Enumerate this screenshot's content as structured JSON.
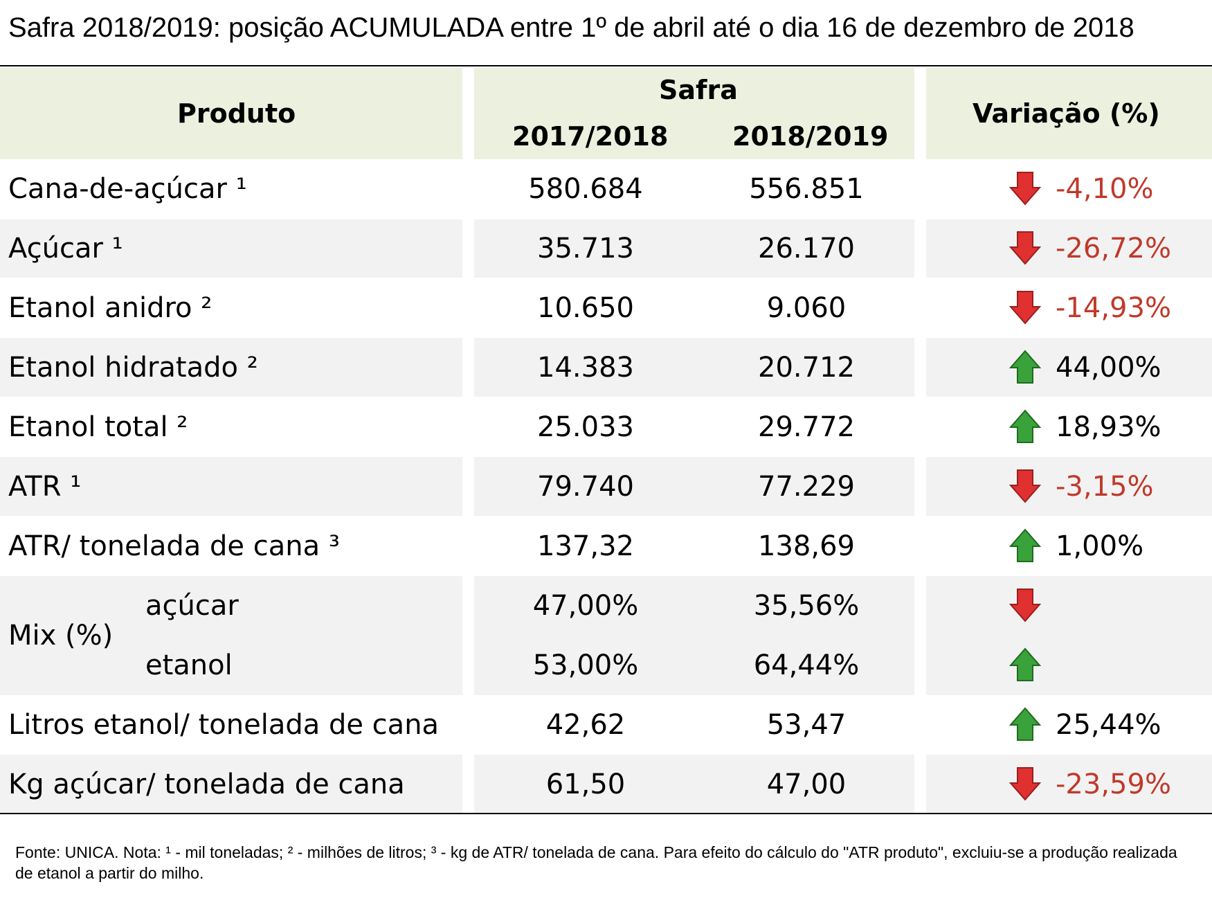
{
  "title": "Safra 2018/2019: posição ACUMULADA entre 1º de abril até o dia 16 de dezembro de 2018",
  "header": {
    "produto": "Produto",
    "safra": "Safra",
    "col1": "2017/2018",
    "col2": "2018/2019",
    "variacao": "Variação (%)"
  },
  "rows": [
    {
      "label": "Cana-de-açúcar ¹",
      "v1": "580.684",
      "v2": "556.851",
      "var": "-4,10%",
      "dir": "down"
    },
    {
      "label": "Açúcar ¹",
      "v1": "35.713",
      "v2": "26.170",
      "var": "-26,72%",
      "dir": "down"
    },
    {
      "label": "Etanol anidro ²",
      "v1": "10.650",
      "v2": "9.060",
      "var": "-14,93%",
      "dir": "down"
    },
    {
      "label": "Etanol hidratado ²",
      "v1": "14.383",
      "v2": "20.712",
      "var": "44,00%",
      "dir": "up"
    },
    {
      "label": "Etanol total ²",
      "v1": "25.033",
      "v2": "29.772",
      "var": "18,93%",
      "dir": "up"
    },
    {
      "label": "ATR ¹",
      "v1": "79.740",
      "v2": "77.229",
      "var": "-3,15%",
      "dir": "down"
    },
    {
      "label": "ATR/ tonelada de cana ³",
      "v1": "137,32",
      "v2": "138,69",
      "var": "1,00%",
      "dir": "up"
    }
  ],
  "mix": {
    "label": "Mix (%)",
    "acucar": {
      "label": "açúcar",
      "v1": "47,00%",
      "v2": "35,56%",
      "dir": "down"
    },
    "etanol": {
      "label": "etanol",
      "v1": "53,00%",
      "v2": "64,44%",
      "dir": "up"
    }
  },
  "rows_after": [
    {
      "label": "Litros etanol/ tonelada de cana",
      "v1": "42,62",
      "v2": "53,47",
      "var": "25,44%",
      "dir": "up"
    },
    {
      "label": "Kg açúcar/ tonelada de cana",
      "v1": "61,50",
      "v2": "47,00",
      "var": "-23,59%",
      "dir": "down"
    }
  ],
  "footnote": "Fonte: UNICA. Nota: ¹ - mil toneladas; ² - milhões de litros; ³ - kg de ATR/ tonelada de cana. Para efeito do cálculo do \"ATR produto\", excluiu-se a produção realizada de etanol a partir do milho.",
  "colors": {
    "header_bg": "#ebf1de",
    "band_bg": "#f2f2f2",
    "neg_text": "#c0392b",
    "up_arrow": "#3aa23a",
    "down_arrow": "#e03030"
  }
}
